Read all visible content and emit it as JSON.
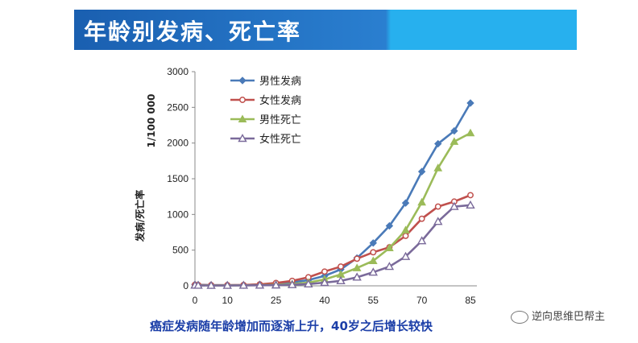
{
  "banner": {
    "title": "年龄别发病、死亡率"
  },
  "caption": "癌症发病随年龄增加而逐渐上升，40岁之后增长较快",
  "watermark": "逆向思维巴帮主",
  "colors": {
    "banner_dark": "#1a5fb0",
    "banner_light": "#27b0ee",
    "caption": "#1c3fa8"
  },
  "chart_data": {
    "type": "line",
    "ylabel_main": "发病/死亡率",
    "ylabel_unit": "1/100 000",
    "ylim": [
      0,
      3000
    ],
    "yticks": [
      0,
      500,
      1000,
      1500,
      2000,
      2500,
      3000
    ],
    "xlim": [
      0,
      85
    ],
    "xticks": [
      0,
      10,
      25,
      40,
      55,
      70,
      85
    ],
    "x": [
      0,
      1,
      5,
      10,
      15,
      20,
      25,
      30,
      35,
      40,
      45,
      50,
      55,
      60,
      65,
      70,
      75,
      80,
      85
    ],
    "legend_position": "top-left",
    "series": [
      {
        "name": "男性发病",
        "color": "#4a7ab8",
        "marker": "diamond",
        "values": [
          20,
          15,
          10,
          10,
          10,
          20,
          30,
          50,
          80,
          140,
          230,
          390,
          600,
          840,
          1160,
          1600,
          1990,
          2170,
          2560
        ]
      },
      {
        "name": "女性发病",
        "color": "#c0504d",
        "marker": "circle",
        "values": [
          15,
          12,
          10,
          10,
          12,
          20,
          40,
          70,
          120,
          200,
          270,
          380,
          470,
          540,
          700,
          940,
          1110,
          1180,
          1270
        ]
      },
      {
        "name": "男性死亡",
        "color": "#9bbb59",
        "marker": "triangle",
        "values": [
          10,
          8,
          6,
          6,
          8,
          10,
          15,
          25,
          45,
          90,
          160,
          250,
          350,
          530,
          780,
          1170,
          1650,
          2020,
          2140
        ]
      },
      {
        "name": "女性死亡",
        "color": "#7a6a9a",
        "marker": "triangle-open",
        "values": [
          8,
          6,
          5,
          5,
          6,
          8,
          10,
          15,
          25,
          45,
          70,
          120,
          190,
          270,
          410,
          630,
          900,
          1110,
          1130
        ]
      }
    ]
  }
}
